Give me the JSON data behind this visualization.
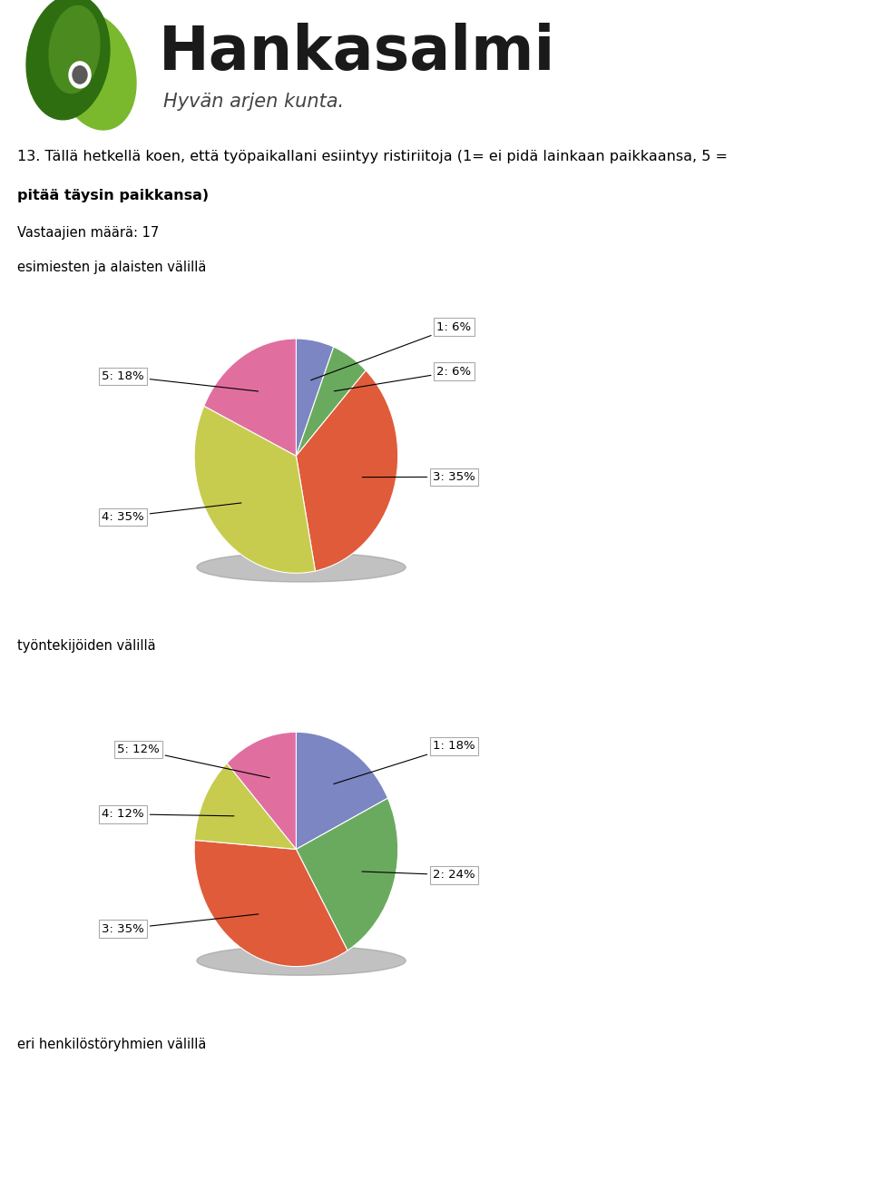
{
  "title_line1": "13. Tällä hetkellä koen, että työpaikallani esiintyy ristiriitoja (1= ei pidä lainkaan paikkaansa, 5 =",
  "title_line2": "pitää täysin paikkansa)",
  "subtitle": "Vastaajien määrä: 17",
  "background_color": "#ffffff",
  "pie1_label": "esimiesten ja alaisten välillä",
  "pie1_values": [
    6,
    6,
    35,
    35,
    18
  ],
  "pie1_labels": [
    "1: 6%",
    "2: 6%",
    "3: 35%",
    "4: 35%",
    "5: 18%"
  ],
  "pie1_colors": [
    "#7b86c2",
    "#6aaa5e",
    "#e05b3a",
    "#c8cc4e",
    "#e06fa0"
  ],
  "pie2_label": "työntekijöiden välillä",
  "pie2_values": [
    18,
    24,
    35,
    12,
    12
  ],
  "pie2_labels": [
    "1: 18%",
    "2: 24%",
    "3: 35%",
    "4: 12%",
    "5: 12%"
  ],
  "pie2_colors": [
    "#7b86c2",
    "#6aaa5e",
    "#e05b3a",
    "#c8cc4e",
    "#e06fa0"
  ],
  "footer_label": "eri henkilöstöryhmien välillä",
  "font_size_title": 11.5,
  "font_size_sub": 10.5,
  "font_size_label": 10.5,
  "font_size_annotation": 9.5,
  "logo_text": "Hankasalmi",
  "logo_subtext": "Hyvän arjen kunta.",
  "logo_color": "#1a1a1a",
  "logo_green1": "#4a8a1e",
  "logo_green2": "#7ab82e",
  "logo_green3": "#9dcc3a"
}
